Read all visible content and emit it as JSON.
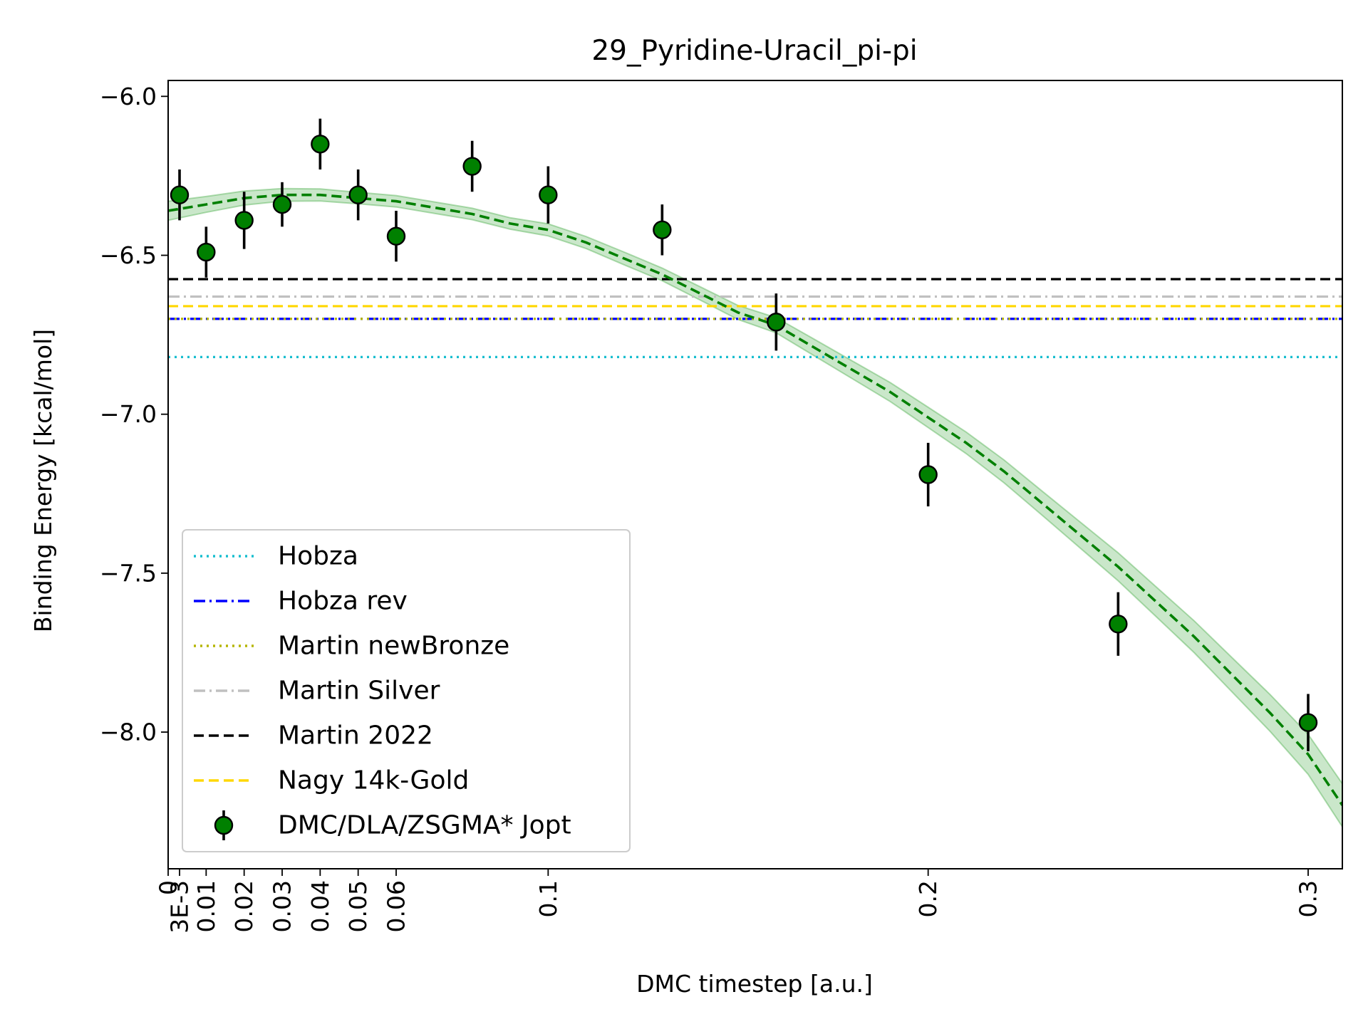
{
  "chart_data": {
    "type": "scatter",
    "title": "29_Pyridine-Uracil_pi-pi",
    "xlabel": "DMC timestep [a.u.]",
    "ylabel": "Binding Energy [kcal/mol]",
    "xlim": [
      0,
      0.309
    ],
    "ylim": [
      -8.43,
      -5.95
    ],
    "x_ticks": [
      {
        "value": 0,
        "label": "0"
      },
      {
        "value": 0.003,
        "label": "3E-3"
      },
      {
        "value": 0.01,
        "label": "0.01"
      },
      {
        "value": 0.02,
        "label": "0.02"
      },
      {
        "value": 0.03,
        "label": "0.03"
      },
      {
        "value": 0.04,
        "label": "0.04"
      },
      {
        "value": 0.05,
        "label": "0.05"
      },
      {
        "value": 0.06,
        "label": "0.06"
      },
      {
        "value": 0.1,
        "label": "0.1"
      },
      {
        "value": 0.2,
        "label": "0.2"
      },
      {
        "value": 0.3,
        "label": "0.3"
      }
    ],
    "y_ticks": [
      {
        "value": -6.0,
        "label": "−6.0"
      },
      {
        "value": -6.5,
        "label": "−6.5"
      },
      {
        "value": -7.0,
        "label": "−7.0"
      },
      {
        "value": -7.5,
        "label": "−7.5"
      },
      {
        "value": -8.0,
        "label": "−8.0"
      }
    ],
    "grid": false,
    "legend_position": "lower-left",
    "reference_lines": [
      {
        "name": "Hobza",
        "y": -6.82,
        "color": "#17becf",
        "dash": "dotted"
      },
      {
        "name": "Hobza rev",
        "y": -6.7,
        "color": "#0000ff",
        "dash": "dashdot"
      },
      {
        "name": "Martin newBronze",
        "y": -6.7,
        "color": "#b5b500",
        "dash": "dotted"
      },
      {
        "name": "Martin Silver",
        "y": -6.63,
        "color": "#c0c0c0",
        "dash": "dashdot"
      },
      {
        "name": "Martin 2022",
        "y": -6.575,
        "color": "#000000",
        "dash": "dashed"
      },
      {
        "name": "Nagy 14k-Gold",
        "y": -6.66,
        "color": "#ffd700",
        "dash": "dashed"
      }
    ],
    "series": [
      {
        "name": "DMC/DLA/ZSGMA* Jopt",
        "color": "#008000",
        "points": [
          {
            "x": 0.003,
            "y": -6.31,
            "err": 0.08
          },
          {
            "x": 0.01,
            "y": -6.49,
            "err": 0.08
          },
          {
            "x": 0.02,
            "y": -6.39,
            "err": 0.09
          },
          {
            "x": 0.03,
            "y": -6.34,
            "err": 0.07
          },
          {
            "x": 0.04,
            "y": -6.15,
            "err": 0.08
          },
          {
            "x": 0.05,
            "y": -6.31,
            "err": 0.08
          },
          {
            "x": 0.06,
            "y": -6.44,
            "err": 0.08
          },
          {
            "x": 0.08,
            "y": -6.22,
            "err": 0.08
          },
          {
            "x": 0.1,
            "y": -6.31,
            "err": 0.09
          },
          {
            "x": 0.13,
            "y": -6.42,
            "err": 0.08
          },
          {
            "x": 0.16,
            "y": -6.71,
            "err": 0.09
          },
          {
            "x": 0.2,
            "y": -7.19,
            "err": 0.1
          },
          {
            "x": 0.25,
            "y": -7.66,
            "err": 0.1
          },
          {
            "x": 0.3,
            "y": -7.97,
            "err": 0.09
          }
        ]
      }
    ],
    "fit": {
      "color": "#008000",
      "band_color": "#2ca02c",
      "curve": {
        "x": [
          0,
          0.01,
          0.02,
          0.03,
          0.04,
          0.05,
          0.06,
          0.07,
          0.08,
          0.09,
          0.1,
          0.11,
          0.12,
          0.13,
          0.14,
          0.15,
          0.16,
          0.17,
          0.18,
          0.19,
          0.2,
          0.21,
          0.22,
          0.23,
          0.24,
          0.25,
          0.26,
          0.27,
          0.28,
          0.29,
          0.3,
          0.309
        ],
        "y": [
          -6.36,
          -6.34,
          -6.32,
          -6.31,
          -6.31,
          -6.32,
          -6.33,
          -6.35,
          -6.37,
          -6.4,
          -6.42,
          -6.46,
          -6.51,
          -6.56,
          -6.62,
          -6.68,
          -6.72,
          -6.79,
          -6.86,
          -6.93,
          -7.01,
          -7.09,
          -7.18,
          -7.28,
          -7.38,
          -7.48,
          -7.59,
          -7.7,
          -7.82,
          -7.94,
          -8.07,
          -8.23
        ]
      },
      "band_halfwidth": [
        0.03,
        0.025,
        0.022,
        0.02,
        0.019,
        0.018,
        0.018,
        0.018,
        0.018,
        0.018,
        0.019,
        0.019,
        0.02,
        0.02,
        0.021,
        0.022,
        0.024,
        0.026,
        0.028,
        0.03,
        0.032,
        0.034,
        0.036,
        0.038,
        0.041,
        0.044,
        0.047,
        0.05,
        0.054,
        0.058,
        0.063,
        0.068
      ]
    }
  }
}
